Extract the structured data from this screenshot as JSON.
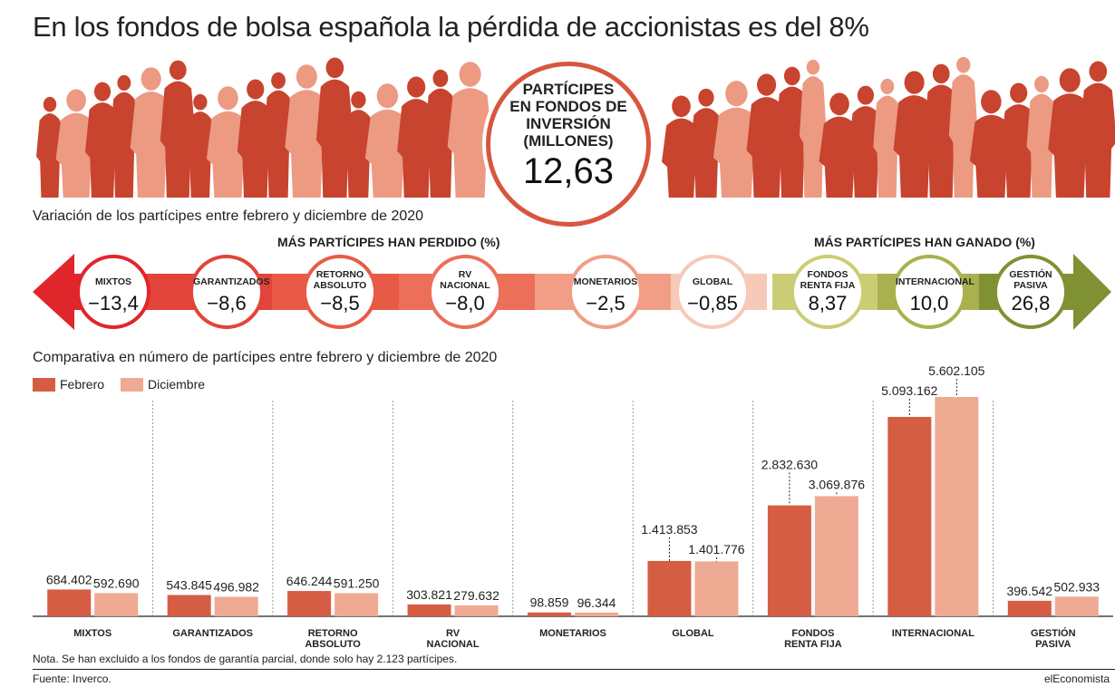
{
  "title": "En los fondos de bolsa española la pérdida de accionistas es del 8%",
  "headline_stat": {
    "label_lines": [
      "PARTÍCIPES",
      "EN FONDOS DE",
      "INVERSIÓN",
      "(MILLONES)"
    ],
    "value": "12,63"
  },
  "variation": {
    "subtitle": "Variación de los partícipes entre febrero y diciembre de 2020",
    "lost_heading": "MÁS PARTÍCIPES HAN PERDIDO (%)",
    "gained_heading": "MÁS PARTÍCIPES HAN GANADO (%)",
    "items": [
      {
        "label": [
          "MIXTOS"
        ],
        "value": "−13,4",
        "color": "#e0262a"
      },
      {
        "label": [
          "GARANTIZADOS"
        ],
        "value": "−8,6",
        "color": "#e2443a"
      },
      {
        "label": [
          "RETORNO",
          "ABSOLUTO"
        ],
        "value": "−8,5",
        "color": "#e85a45"
      },
      {
        "label": [
          "RV",
          "NACIONAL"
        ],
        "value": "−8,0",
        "color": "#ec7059"
      },
      {
        "label": [
          "MONETARIOS"
        ],
        "value": "−2,5",
        "color": "#f29e87"
      },
      {
        "label": [
          "GLOBAL"
        ],
        "value": "−0,85",
        "color": "#f6c9b8"
      },
      {
        "label": [
          "FONDOS",
          "RENTA FIJA"
        ],
        "value": "8,37",
        "color": "#cbcc76"
      },
      {
        "label": [
          "INTERNACIONAL"
        ],
        "value": "10,0",
        "color": "#a9b04e"
      },
      {
        "label": [
          "GESTIÓN",
          "PASIVA"
        ],
        "value": "26,8",
        "color": "#7f9133"
      }
    ]
  },
  "comparison": {
    "subtitle": "Comparativa en número de partícipes entre febrero y diciembre de 2020",
    "legend": [
      {
        "name": "Febrero",
        "color": "#d55d44"
      },
      {
        "name": "Diciembre",
        "color": "#eeaa92"
      }
    ]
  },
  "chart_data": {
    "type": "bar",
    "categories": [
      [
        "MIXTOS"
      ],
      [
        "GARANTIZADOS"
      ],
      [
        "RETORNO",
        "ABSOLUTO"
      ],
      [
        "RV",
        "NACIONAL"
      ],
      [
        "MONETARIOS"
      ],
      [
        "GLOBAL"
      ],
      [
        "FONDOS",
        "RENTA FIJA"
      ],
      [
        "INTERNACIONAL"
      ],
      [
        "GESTIÓN",
        "PASIVA"
      ]
    ],
    "series": [
      {
        "name": "Febrero",
        "values": [
          684402,
          543845,
          646244,
          303821,
          98859,
          1413853,
          2832630,
          5093162,
          396542
        ],
        "labels": [
          "684.402",
          "543.845",
          "646.244",
          "303.821",
          "98.859",
          "1.413.853",
          "2.832.630",
          "5.093.162",
          "396.542"
        ]
      },
      {
        "name": "Diciembre",
        "values": [
          592690,
          496982,
          591250,
          279632,
          96344,
          1401776,
          3069876,
          5602105,
          502933
        ],
        "labels": [
          "592.690",
          "496.982",
          "591.250",
          "279.632",
          "96.344",
          "1.401.776",
          "3.069.876",
          "5.602.105",
          "502.933"
        ]
      }
    ],
    "title": "Comparativa en número de partícipes entre febrero y diciembre de 2020",
    "xlabel": "",
    "ylabel": "",
    "ylim": [
      0,
      5602105
    ],
    "grid": false,
    "legend_position": "top-left"
  },
  "note": "Nota. Se han excluido a los fondos de garantía parcial, donde solo hay 2.123 partícipes.",
  "source": "Fuente: Inverco.",
  "brand": "elEconomista",
  "colors": {
    "accent": "#d8553f",
    "crowd_dark": "#c8442e",
    "crowd_light": "#ec9a82"
  }
}
